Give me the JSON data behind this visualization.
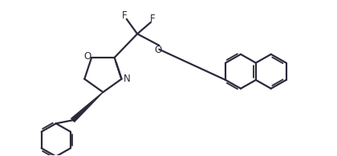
{
  "background": "#ffffff",
  "line_color": "#2a2a3a",
  "line_width": 1.6,
  "font_size_label": 8.5,
  "xlim": [
    0,
    10
  ],
  "ylim": [
    0,
    4.7
  ]
}
